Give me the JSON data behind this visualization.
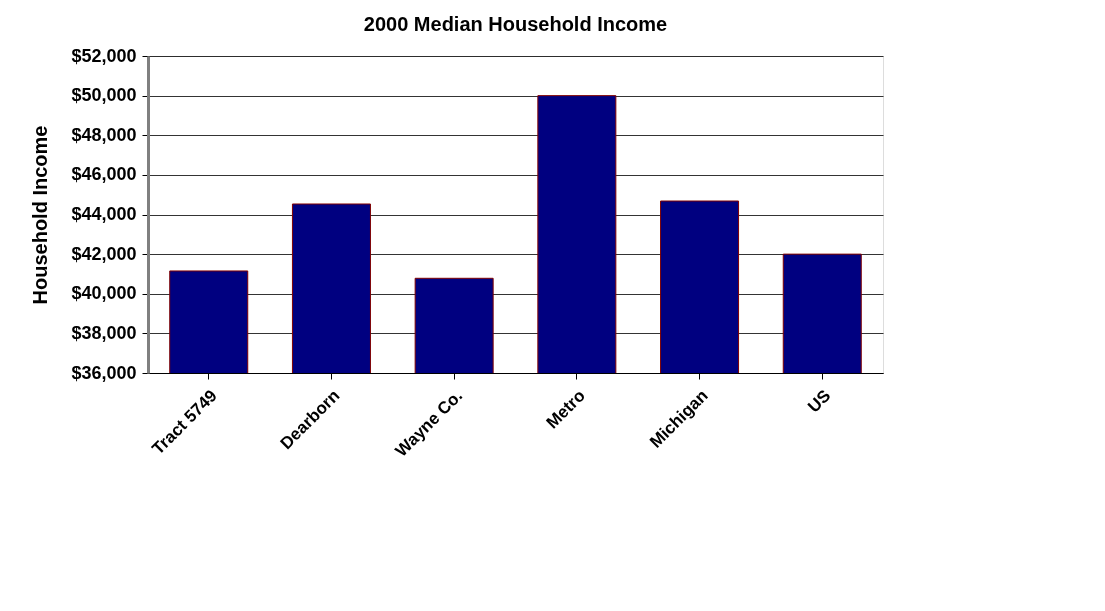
{
  "chart_data": {
    "type": "bar",
    "title": "2000 Median Household Income",
    "ylabel": "Household Income",
    "categories": [
      "Tract 5749",
      "Dearborn",
      "Wayne Co.",
      "Metro",
      "Michigan",
      "US"
    ],
    "values": [
      41150,
      44530,
      40780,
      50000,
      44680,
      42000
    ],
    "color": "#000080",
    "ylim": [
      36000,
      52000
    ],
    "yticks": [
      {
        "value": 36000,
        "label": "$36,000"
      },
      {
        "value": 38000,
        "label": "$38,000"
      },
      {
        "value": 40000,
        "label": "$40,000"
      },
      {
        "value": 42000,
        "label": "$42,000"
      },
      {
        "value": 44000,
        "label": "$44,000"
      },
      {
        "value": 46000,
        "label": "$46,000"
      },
      {
        "value": 48000,
        "label": "$48,000"
      },
      {
        "value": 50000,
        "label": "$50,000"
      },
      {
        "value": 52000,
        "label": "$52,000"
      }
    ],
    "grid": "y"
  }
}
